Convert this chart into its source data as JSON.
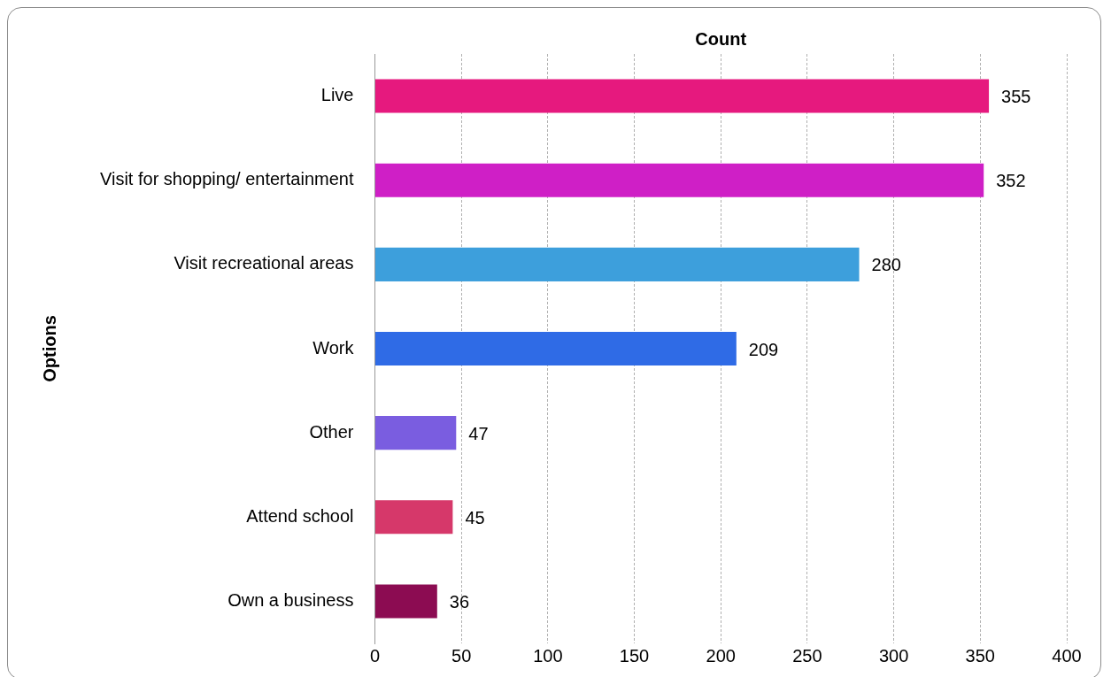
{
  "chart_data": {
    "type": "bar",
    "orientation": "horizontal",
    "title": "Count",
    "ylabel": "Options",
    "categories": [
      "Live",
      "Visit for shopping/ entertainment",
      "Visit recreational areas",
      "Work",
      "Other",
      "Attend school",
      "Own a business"
    ],
    "values": [
      355,
      352,
      280,
      209,
      47,
      45,
      36
    ],
    "colors": [
      "#e6197e",
      "#cf1fc6",
      "#3d9fdc",
      "#2f6be6",
      "#7a5de0",
      "#d6386a",
      "#8c0c52"
    ],
    "xlim": [
      0,
      400
    ],
    "xticks": [
      0,
      50,
      100,
      150,
      200,
      250,
      300,
      350,
      400
    ],
    "grid": "x",
    "legend": false,
    "data_labels": true
  }
}
